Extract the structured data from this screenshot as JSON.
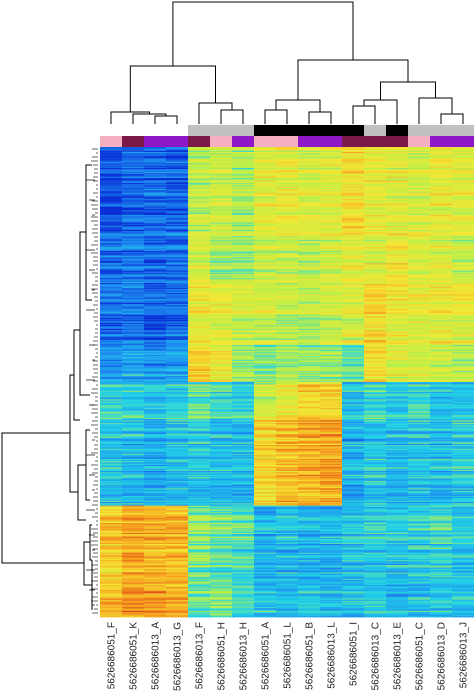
{
  "chart_data": {
    "type": "heatmap",
    "title": "",
    "xlabel": "",
    "ylabel": "",
    "color_scale": [
      "#0a2fd6",
      "#1e8cf0",
      "#22d4e6",
      "#b8f04a",
      "#f5e634",
      "#f59a1e",
      "#d6301a"
    ],
    "annotation_colors": {
      "group_top": [
        "#c0c0c0",
        "#000000",
        "#ffffff"
      ],
      "group_bottom": [
        "#f4b0c0",
        "#7a1848",
        "#8e18c8"
      ]
    },
    "columns": [
      {
        "label": "5626686051_F",
        "group_top": 2,
        "group_bottom": 0
      },
      {
        "label": "5626686051_K",
        "group_top": 2,
        "group_bottom": 1
      },
      {
        "label": "5626686013_A",
        "group_top": 2,
        "group_bottom": 2
      },
      {
        "label": "5626686013_G",
        "group_top": 2,
        "group_bottom": 2
      },
      {
        "label": "5626686013_F",
        "group_top": 0,
        "group_bottom": 1
      },
      {
        "label": "5626686051_H",
        "group_top": 0,
        "group_bottom": 0
      },
      {
        "label": "5626686013_H",
        "group_top": 0,
        "group_bottom": 2
      },
      {
        "label": "5626686051_A",
        "group_top": 1,
        "group_bottom": 0
      },
      {
        "label": "5626686051_L",
        "group_top": 1,
        "group_bottom": 0
      },
      {
        "label": "5626686051_B",
        "group_top": 1,
        "group_bottom": 2
      },
      {
        "label": "5626686013_L",
        "group_top": 1,
        "group_bottom": 2
      },
      {
        "label": "5626686051_I",
        "group_top": 1,
        "group_bottom": 1
      },
      {
        "label": "5626686013_C",
        "group_top": 0,
        "group_bottom": 1
      },
      {
        "label": "5626686013_E",
        "group_top": 1,
        "group_bottom": 1
      },
      {
        "label": "5626686051_C",
        "group_top": 0,
        "group_bottom": 0
      },
      {
        "label": "5626686013_D",
        "group_top": 0,
        "group_bottom": 2
      },
      {
        "label": "5626686013_J",
        "group_top": 0,
        "group_bottom": 2
      }
    ],
    "row_blocks": [
      {
        "rows": 70,
        "values": [
          0.05,
          0.08,
          0.1,
          0.08,
          0.52,
          0.55,
          0.5,
          0.6,
          0.62,
          0.58,
          0.6,
          0.68,
          0.62,
          0.6,
          0.58,
          0.62,
          0.6
        ]
      },
      {
        "rows": 40,
        "values": [
          0.12,
          0.14,
          0.12,
          0.12,
          0.58,
          0.5,
          0.48,
          0.55,
          0.56,
          0.55,
          0.58,
          0.62,
          0.6,
          0.65,
          0.6,
          0.6,
          0.55
        ]
      },
      {
        "rows": 50,
        "values": [
          0.1,
          0.12,
          0.08,
          0.1,
          0.62,
          0.6,
          0.55,
          0.55,
          0.52,
          0.5,
          0.55,
          0.58,
          0.68,
          0.62,
          0.6,
          0.62,
          0.6
        ]
      },
      {
        "rows": 30,
        "values": [
          0.2,
          0.25,
          0.2,
          0.22,
          0.72,
          0.66,
          0.5,
          0.45,
          0.5,
          0.48,
          0.5,
          0.42,
          0.7,
          0.62,
          0.58,
          0.56,
          0.52
        ]
      },
      {
        "rows": 30,
        "values": [
          0.35,
          0.32,
          0.3,
          0.3,
          0.4,
          0.35,
          0.33,
          0.55,
          0.62,
          0.7,
          0.72,
          0.3,
          0.35,
          0.32,
          0.35,
          0.3,
          0.3
        ]
      },
      {
        "rows": 70,
        "values": [
          0.3,
          0.28,
          0.25,
          0.28,
          0.3,
          0.28,
          0.27,
          0.7,
          0.75,
          0.78,
          0.8,
          0.25,
          0.3,
          0.28,
          0.3,
          0.28,
          0.32
        ]
      },
      {
        "rows": 60,
        "values": [
          0.72,
          0.78,
          0.76,
          0.75,
          0.45,
          0.4,
          0.38,
          0.25,
          0.28,
          0.25,
          0.25,
          0.28,
          0.3,
          0.3,
          0.32,
          0.35,
          0.3
        ]
      },
      {
        "rows": 30,
        "values": [
          0.78,
          0.85,
          0.82,
          0.8,
          0.42,
          0.45,
          0.38,
          0.3,
          0.28,
          0.3,
          0.28,
          0.3,
          0.34,
          0.28,
          0.3,
          0.3,
          0.32
        ]
      }
    ],
    "column_dendrogram": "yes",
    "row_dendrogram": "yes",
    "grid": false,
    "legend": "none"
  }
}
